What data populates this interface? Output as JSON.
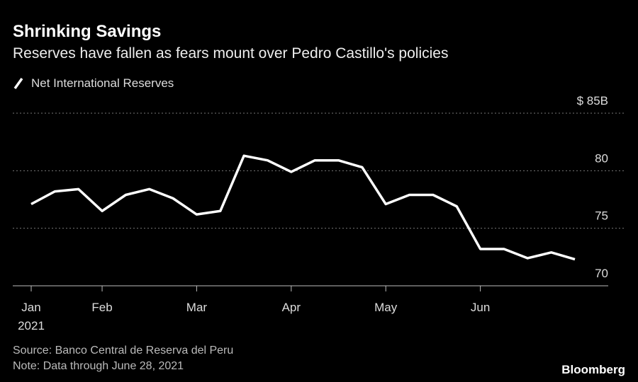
{
  "chart_data": {
    "type": "line",
    "title": "Shrinking Savings",
    "subtitle": "Reserves have fallen as fears mount over Pedro Castillo's policies",
    "categories": [
      "Jan",
      null,
      null,
      "Feb",
      null,
      null,
      null,
      "Mar",
      null,
      null,
      null,
      "Apr",
      null,
      null,
      null,
      "May",
      null,
      null,
      null,
      "Jun",
      null,
      null,
      null,
      null
    ],
    "x_year": "2021",
    "series": [
      {
        "name": "Net International Reserves",
        "color": "#ffffff",
        "values": [
          77.1,
          78.2,
          78.4,
          76.5,
          77.9,
          78.4,
          77.6,
          76.2,
          76.5,
          81.3,
          80.9,
          79.9,
          80.9,
          80.9,
          80.3,
          77.1,
          77.9,
          77.9,
          76.9,
          73.2,
          73.2,
          72.4,
          72.9,
          72.3
        ]
      }
    ],
    "ylim": [
      70,
      85
    ],
    "yticks": [
      70,
      75,
      80,
      {
        "value": 85,
        "label": "$ 85B"
      }
    ],
    "grid": true,
    "source": "Source: Banco Central de Reserva del Peru",
    "note": "Note: Data through June 28, 2021",
    "brand": "Bloomberg"
  }
}
